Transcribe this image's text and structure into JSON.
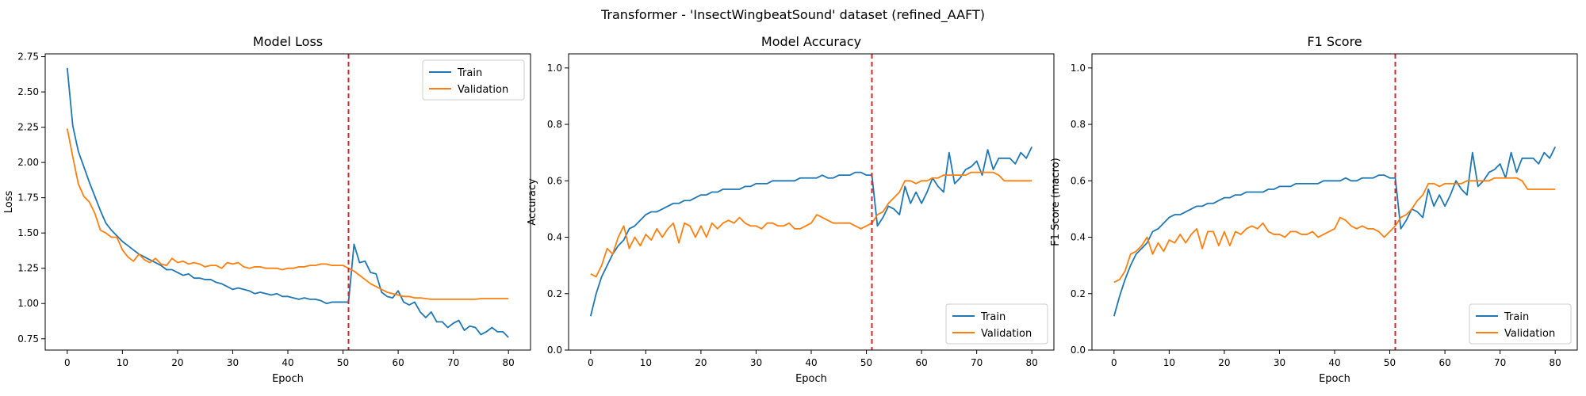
{
  "figure": {
    "suptitle": "Transformer - 'InsectWingbeatSound' dataset (refined_AAFT)"
  },
  "colors": {
    "train": "#1f77b4",
    "validation": "#ff7f0e",
    "marker": "#d62728"
  },
  "chart_data": [
    {
      "type": "line",
      "title": "Model Loss",
      "xlabel": "Epoch",
      "ylabel": "Loss",
      "xlim": [
        -4,
        84
      ],
      "ylim": [
        0.67,
        2.77
      ],
      "xticks": [
        0,
        10,
        20,
        30,
        40,
        50,
        60,
        70,
        80
      ],
      "yticks": [
        0.75,
        1.0,
        1.25,
        1.5,
        1.75,
        2.0,
        2.25,
        2.5,
        2.75
      ],
      "ytick_labels": [
        "0.75",
        "1.00",
        "1.25",
        "1.50",
        "1.75",
        "2.00",
        "2.25",
        "2.50",
        "2.75"
      ],
      "vline": 51,
      "legend": "top-right",
      "series": [
        {
          "name": "Train",
          "values": [
            2.67,
            2.26,
            2.08,
            1.97,
            1.86,
            1.76,
            1.66,
            1.57,
            1.52,
            1.48,
            1.44,
            1.41,
            1.38,
            1.35,
            1.33,
            1.31,
            1.29,
            1.27,
            1.24,
            1.24,
            1.22,
            1.2,
            1.21,
            1.18,
            1.18,
            1.17,
            1.17,
            1.15,
            1.14,
            1.12,
            1.1,
            1.11,
            1.1,
            1.09,
            1.07,
            1.08,
            1.07,
            1.06,
            1.07,
            1.05,
            1.05,
            1.04,
            1.03,
            1.04,
            1.03,
            1.03,
            1.02,
            1.0,
            1.01,
            1.01,
            1.01,
            1.01,
            1.42,
            1.29,
            1.3,
            1.22,
            1.21,
            1.08,
            1.05,
            1.04,
            1.09,
            1.01,
            0.99,
            1.01,
            0.94,
            0.9,
            0.94,
            0.87,
            0.87,
            0.83,
            0.86,
            0.88,
            0.81,
            0.84,
            0.83,
            0.78,
            0.8,
            0.83,
            0.8,
            0.8,
            0.76
          ]
        },
        {
          "name": "Validation",
          "values": [
            2.24,
            2.04,
            1.85,
            1.76,
            1.72,
            1.64,
            1.52,
            1.5,
            1.47,
            1.47,
            1.38,
            1.33,
            1.3,
            1.35,
            1.31,
            1.29,
            1.32,
            1.28,
            1.27,
            1.32,
            1.29,
            1.3,
            1.28,
            1.29,
            1.28,
            1.26,
            1.27,
            1.27,
            1.25,
            1.29,
            1.28,
            1.29,
            1.26,
            1.25,
            1.26,
            1.26,
            1.25,
            1.25,
            1.25,
            1.24,
            1.25,
            1.25,
            1.26,
            1.26,
            1.27,
            1.27,
            1.28,
            1.28,
            1.27,
            1.27,
            1.27,
            1.25,
            1.23,
            1.2,
            1.17,
            1.14,
            1.12,
            1.1,
            1.08,
            1.07,
            1.06,
            1.05,
            1.05,
            1.04,
            1.04,
            1.035,
            1.03,
            1.03,
            1.03,
            1.03,
            1.03,
            1.03,
            1.03,
            1.03,
            1.03,
            1.035,
            1.035,
            1.035,
            1.035,
            1.035,
            1.035
          ]
        }
      ]
    },
    {
      "type": "line",
      "title": "Model Accuracy",
      "xlabel": "Epoch",
      "ylabel": "Accuracy",
      "xlim": [
        -4,
        84
      ],
      "ylim": [
        0.0,
        1.05
      ],
      "xticks": [
        0,
        10,
        20,
        30,
        40,
        50,
        60,
        70,
        80
      ],
      "yticks": [
        0.0,
        0.2,
        0.4,
        0.6,
        0.8,
        1.0
      ],
      "ytick_labels": [
        "0.0",
        "0.2",
        "0.4",
        "0.6",
        "0.8",
        "1.0"
      ],
      "vline": 51,
      "legend": "bottom-right",
      "series": [
        {
          "name": "Train",
          "values": [
            0.12,
            0.2,
            0.26,
            0.3,
            0.34,
            0.37,
            0.39,
            0.43,
            0.44,
            0.46,
            0.48,
            0.49,
            0.49,
            0.5,
            0.51,
            0.52,
            0.52,
            0.53,
            0.53,
            0.54,
            0.55,
            0.55,
            0.56,
            0.56,
            0.57,
            0.57,
            0.57,
            0.57,
            0.58,
            0.58,
            0.59,
            0.59,
            0.59,
            0.6,
            0.6,
            0.6,
            0.6,
            0.6,
            0.61,
            0.61,
            0.61,
            0.61,
            0.62,
            0.61,
            0.61,
            0.62,
            0.62,
            0.62,
            0.63,
            0.63,
            0.62,
            0.62,
            0.44,
            0.47,
            0.51,
            0.5,
            0.48,
            0.58,
            0.52,
            0.56,
            0.52,
            0.56,
            0.61,
            0.58,
            0.56,
            0.7,
            0.59,
            0.61,
            0.64,
            0.65,
            0.67,
            0.62,
            0.71,
            0.64,
            0.68,
            0.68,
            0.68,
            0.66,
            0.7,
            0.68,
            0.72
          ]
        },
        {
          "name": "Validation",
          "values": [
            0.27,
            0.26,
            0.3,
            0.36,
            0.34,
            0.4,
            0.44,
            0.36,
            0.4,
            0.37,
            0.41,
            0.39,
            0.43,
            0.4,
            0.43,
            0.45,
            0.38,
            0.45,
            0.44,
            0.4,
            0.44,
            0.4,
            0.45,
            0.43,
            0.45,
            0.46,
            0.45,
            0.47,
            0.45,
            0.44,
            0.44,
            0.43,
            0.45,
            0.45,
            0.44,
            0.44,
            0.45,
            0.43,
            0.43,
            0.44,
            0.45,
            0.48,
            0.47,
            0.46,
            0.45,
            0.45,
            0.45,
            0.45,
            0.44,
            0.43,
            0.44,
            0.45,
            0.48,
            0.49,
            0.52,
            0.54,
            0.56,
            0.6,
            0.6,
            0.59,
            0.6,
            0.6,
            0.61,
            0.61,
            0.62,
            0.62,
            0.62,
            0.62,
            0.62,
            0.63,
            0.63,
            0.63,
            0.63,
            0.63,
            0.62,
            0.6,
            0.6,
            0.6,
            0.6,
            0.6,
            0.6
          ]
        }
      ]
    },
    {
      "type": "line",
      "title": "F1 Score",
      "xlabel": "Epoch",
      "ylabel": "F1 Score (macro)",
      "xlim": [
        -4,
        84
      ],
      "ylim": [
        0.0,
        1.05
      ],
      "xticks": [
        0,
        10,
        20,
        30,
        40,
        50,
        60,
        70,
        80
      ],
      "yticks": [
        0.0,
        0.2,
        0.4,
        0.6,
        0.8,
        1.0
      ],
      "ytick_labels": [
        "0.0",
        "0.2",
        "0.4",
        "0.6",
        "0.8",
        "1.0"
      ],
      "vline": 51,
      "legend": "bottom-right",
      "series": [
        {
          "name": "Train",
          "values": [
            0.12,
            0.19,
            0.25,
            0.3,
            0.34,
            0.36,
            0.38,
            0.42,
            0.43,
            0.45,
            0.47,
            0.48,
            0.48,
            0.49,
            0.5,
            0.51,
            0.51,
            0.52,
            0.52,
            0.53,
            0.54,
            0.54,
            0.55,
            0.55,
            0.56,
            0.56,
            0.56,
            0.56,
            0.57,
            0.57,
            0.58,
            0.58,
            0.58,
            0.59,
            0.59,
            0.59,
            0.59,
            0.59,
            0.6,
            0.6,
            0.6,
            0.6,
            0.61,
            0.6,
            0.6,
            0.61,
            0.61,
            0.61,
            0.62,
            0.62,
            0.61,
            0.61,
            0.43,
            0.46,
            0.5,
            0.49,
            0.47,
            0.57,
            0.51,
            0.55,
            0.51,
            0.55,
            0.6,
            0.57,
            0.55,
            0.7,
            0.58,
            0.6,
            0.63,
            0.64,
            0.66,
            0.61,
            0.7,
            0.63,
            0.68,
            0.68,
            0.68,
            0.66,
            0.7,
            0.68,
            0.72
          ]
        },
        {
          "name": "Validation",
          "values": [
            0.24,
            0.25,
            0.28,
            0.34,
            0.35,
            0.37,
            0.4,
            0.34,
            0.38,
            0.35,
            0.39,
            0.38,
            0.41,
            0.38,
            0.41,
            0.43,
            0.36,
            0.42,
            0.42,
            0.37,
            0.42,
            0.37,
            0.42,
            0.41,
            0.43,
            0.44,
            0.43,
            0.45,
            0.42,
            0.41,
            0.41,
            0.4,
            0.42,
            0.42,
            0.41,
            0.41,
            0.42,
            0.4,
            0.41,
            0.42,
            0.43,
            0.47,
            0.46,
            0.44,
            0.43,
            0.44,
            0.43,
            0.43,
            0.42,
            0.4,
            0.42,
            0.44,
            0.47,
            0.48,
            0.5,
            0.53,
            0.55,
            0.59,
            0.59,
            0.58,
            0.59,
            0.59,
            0.59,
            0.59,
            0.6,
            0.6,
            0.6,
            0.6,
            0.6,
            0.61,
            0.61,
            0.61,
            0.61,
            0.61,
            0.6,
            0.57,
            0.57,
            0.57,
            0.57,
            0.57,
            0.57
          ]
        }
      ]
    }
  ]
}
